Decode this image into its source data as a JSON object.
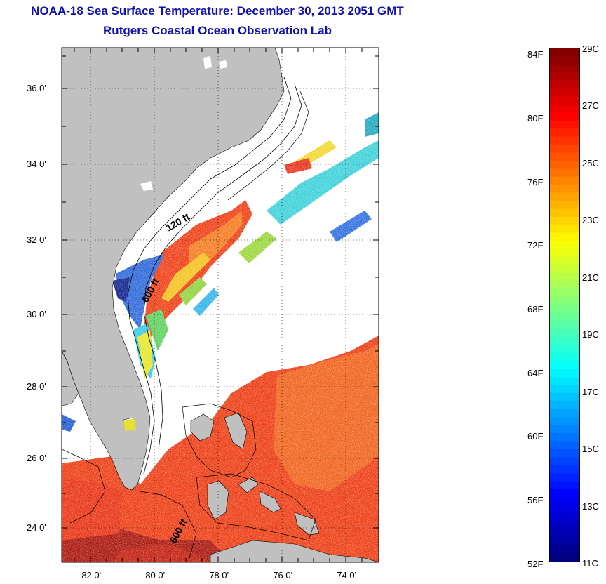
{
  "header": {
    "title": "NOAA-18 Sea Surface Temperature:  December 30, 2013 2051 GMT",
    "subtitle": "Rutgers Coastal Ocean Observation Lab"
  },
  "map": {
    "lat_labels": [
      "36 0'",
      "34 0'",
      "32 0'",
      "30 0'",
      "28 0'",
      "26 0'",
      "24 0'"
    ],
    "lon_labels": [
      "-82 0'",
      "-80 0'",
      "-78 0'",
      "-76 0'",
      "-74 0'"
    ],
    "contour_labels": [
      "120 ft",
      "600 ft",
      "600 ft"
    ],
    "land_color": "#c0c0c0",
    "cloud_color": "#ffffff"
  },
  "colorbar": {
    "fahrenheit_labels": [
      "84F",
      "80F",
      "76F",
      "72F",
      "68F",
      "64F",
      "60F",
      "56F",
      "52F"
    ],
    "celsius_labels": [
      "29C",
      "27C",
      "25C",
      "23C",
      "21C",
      "19C",
      "17C",
      "15C",
      "13C",
      "11C"
    ],
    "range_c": [
      11,
      29
    ],
    "range_f": [
      52,
      84
    ]
  }
}
